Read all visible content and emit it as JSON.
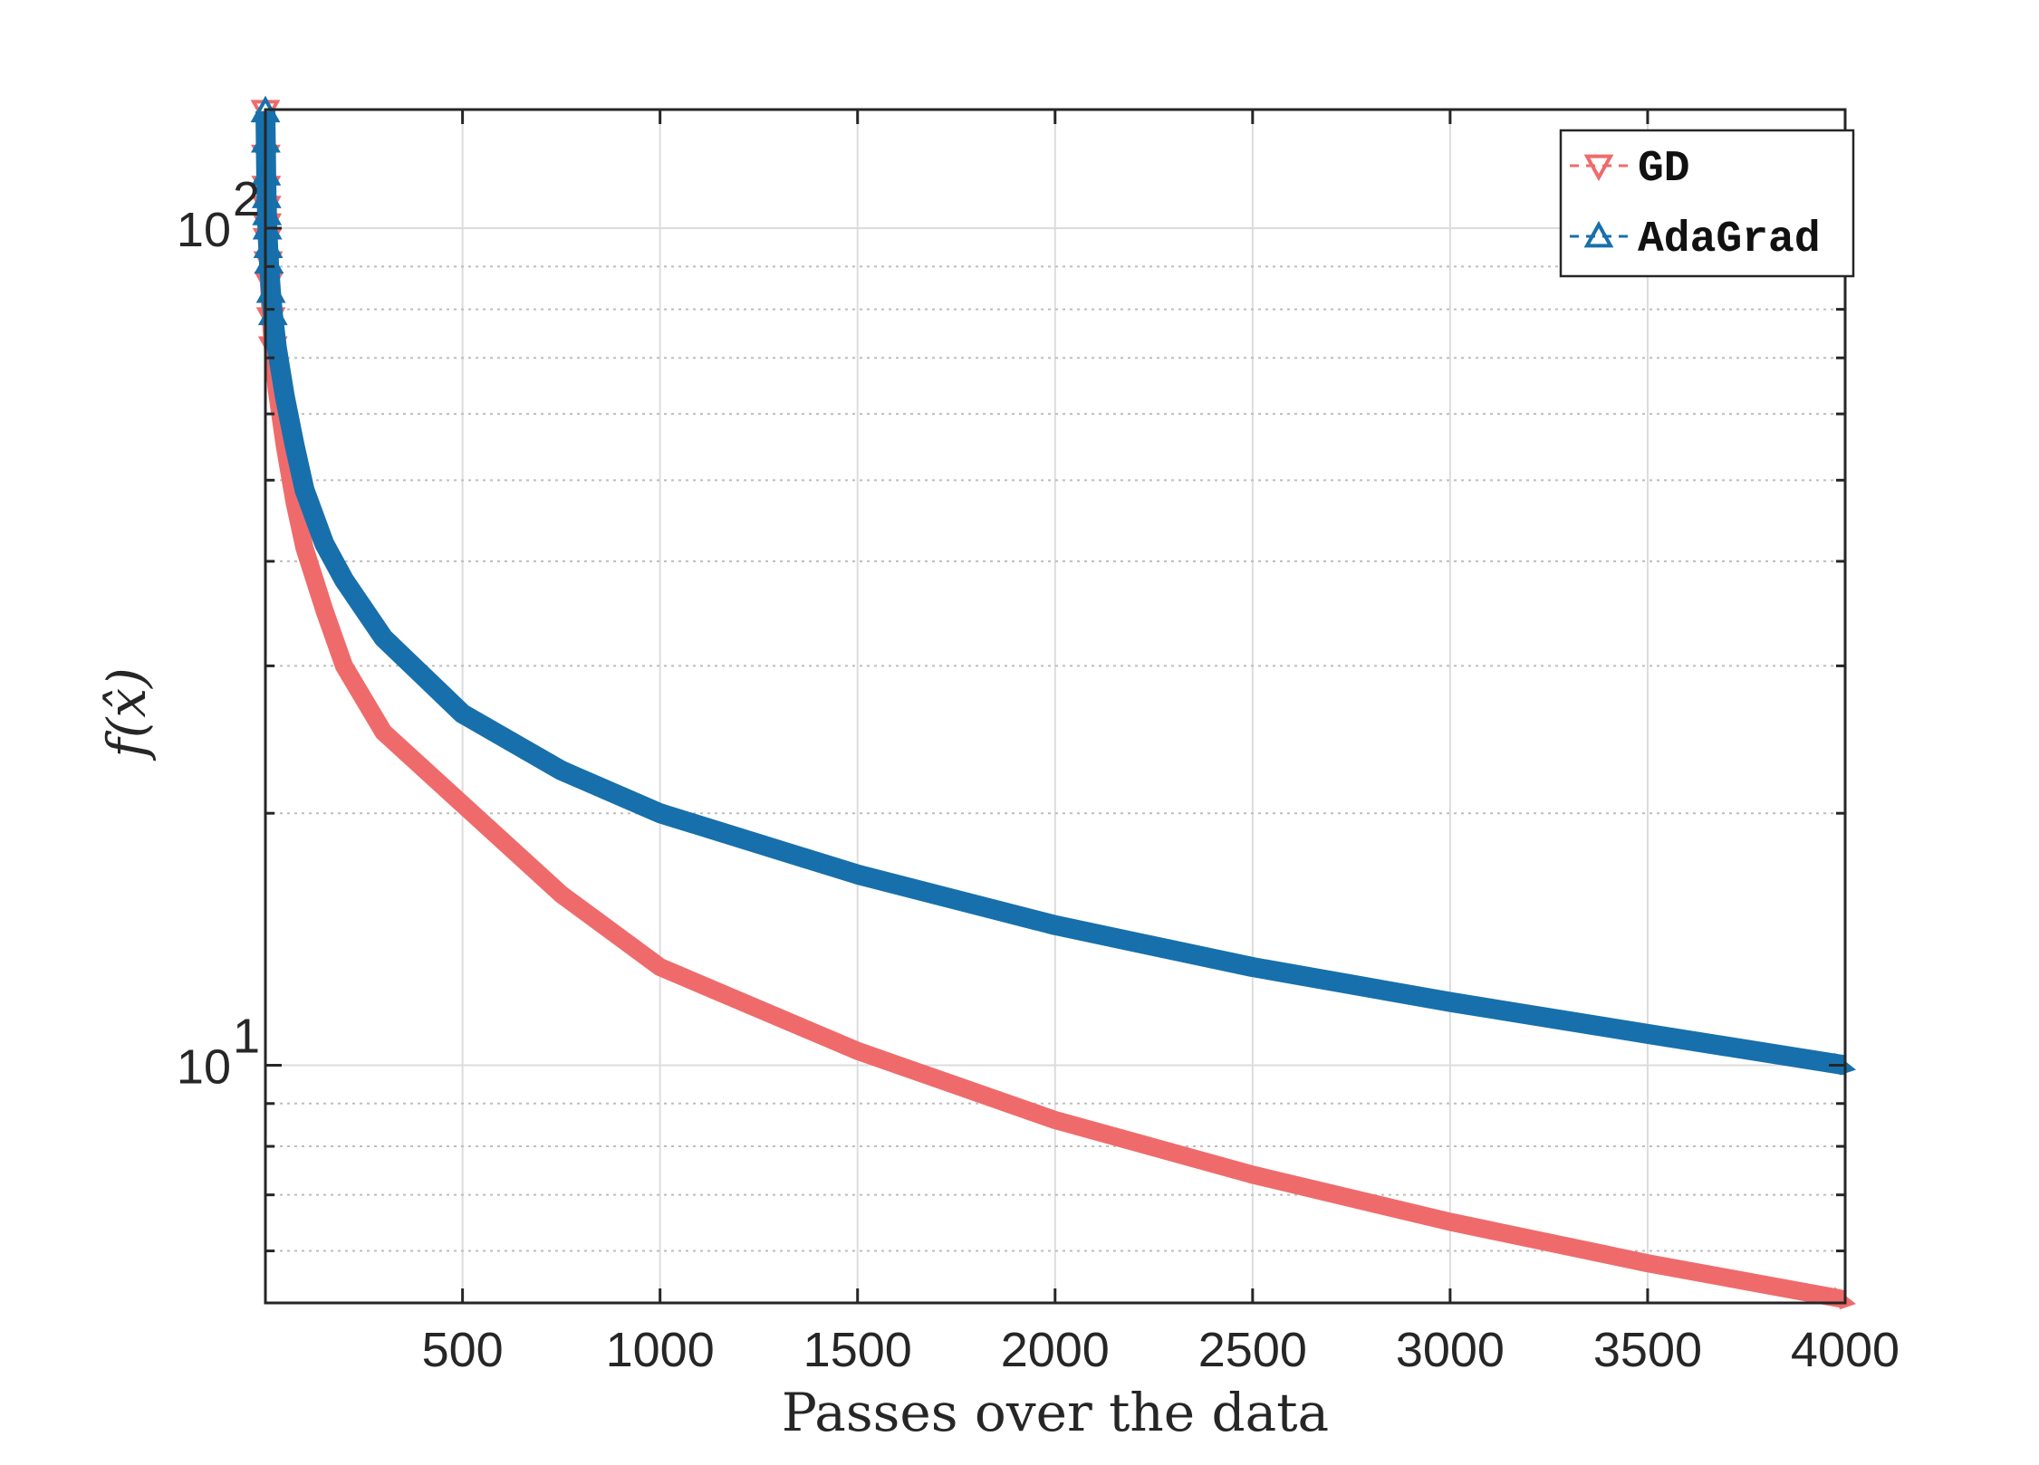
{
  "chart_data": {
    "type": "line",
    "title": "",
    "xlabel": "Passes over the data",
    "ylabel": "f(x̂)",
    "xscale": "linear",
    "yscale": "log",
    "xlim": [
      1,
      4000
    ],
    "ylim": [
      5.2,
      138.6
    ],
    "xticks": [
      500,
      1000,
      1500,
      2000,
      2500,
      3000,
      3500,
      4000
    ],
    "xtick_labels": [
      "500",
      "1000",
      "1500",
      "2000",
      "2500",
      "3000",
      "3500",
      "4000"
    ],
    "yticks": [
      10,
      100
    ],
    "ytick_labels": [
      {
        "base": "10",
        "exp": "1"
      },
      {
        "base": "10",
        "exp": "2"
      }
    ],
    "grid": true,
    "legend_placement": "top-right",
    "x": [
      1,
      2,
      3,
      4,
      5,
      6,
      8,
      10,
      15,
      20,
      30,
      50,
      75,
      100,
      150,
      200,
      300,
      500,
      750,
      1000,
      1500,
      2000,
      2500,
      3000,
      3500,
      4000
    ],
    "series": [
      {
        "name": "GD",
        "color": "#EF6B6B",
        "marker": "triangle-down",
        "values": [
          138,
          122,
          112,
          106,
          101,
          97,
          91,
          86,
          78,
          72,
          64,
          55,
          47,
          41.5,
          35,
          30,
          25,
          20.5,
          16,
          13.1,
          10.4,
          8.6,
          7.4,
          6.5,
          5.8,
          5.25
        ]
      },
      {
        "name": "AdaGrad",
        "color": "#1770AB",
        "marker": "triangle-up",
        "values": [
          138,
          127,
          116,
          109,
          104,
          100,
          95,
          91,
          84,
          79,
          72,
          63,
          55,
          48.7,
          42,
          38,
          32.4,
          26.3,
          22.5,
          20.0,
          16.9,
          14.7,
          13.1,
          11.9,
          10.9,
          10.0
        ]
      }
    ]
  }
}
